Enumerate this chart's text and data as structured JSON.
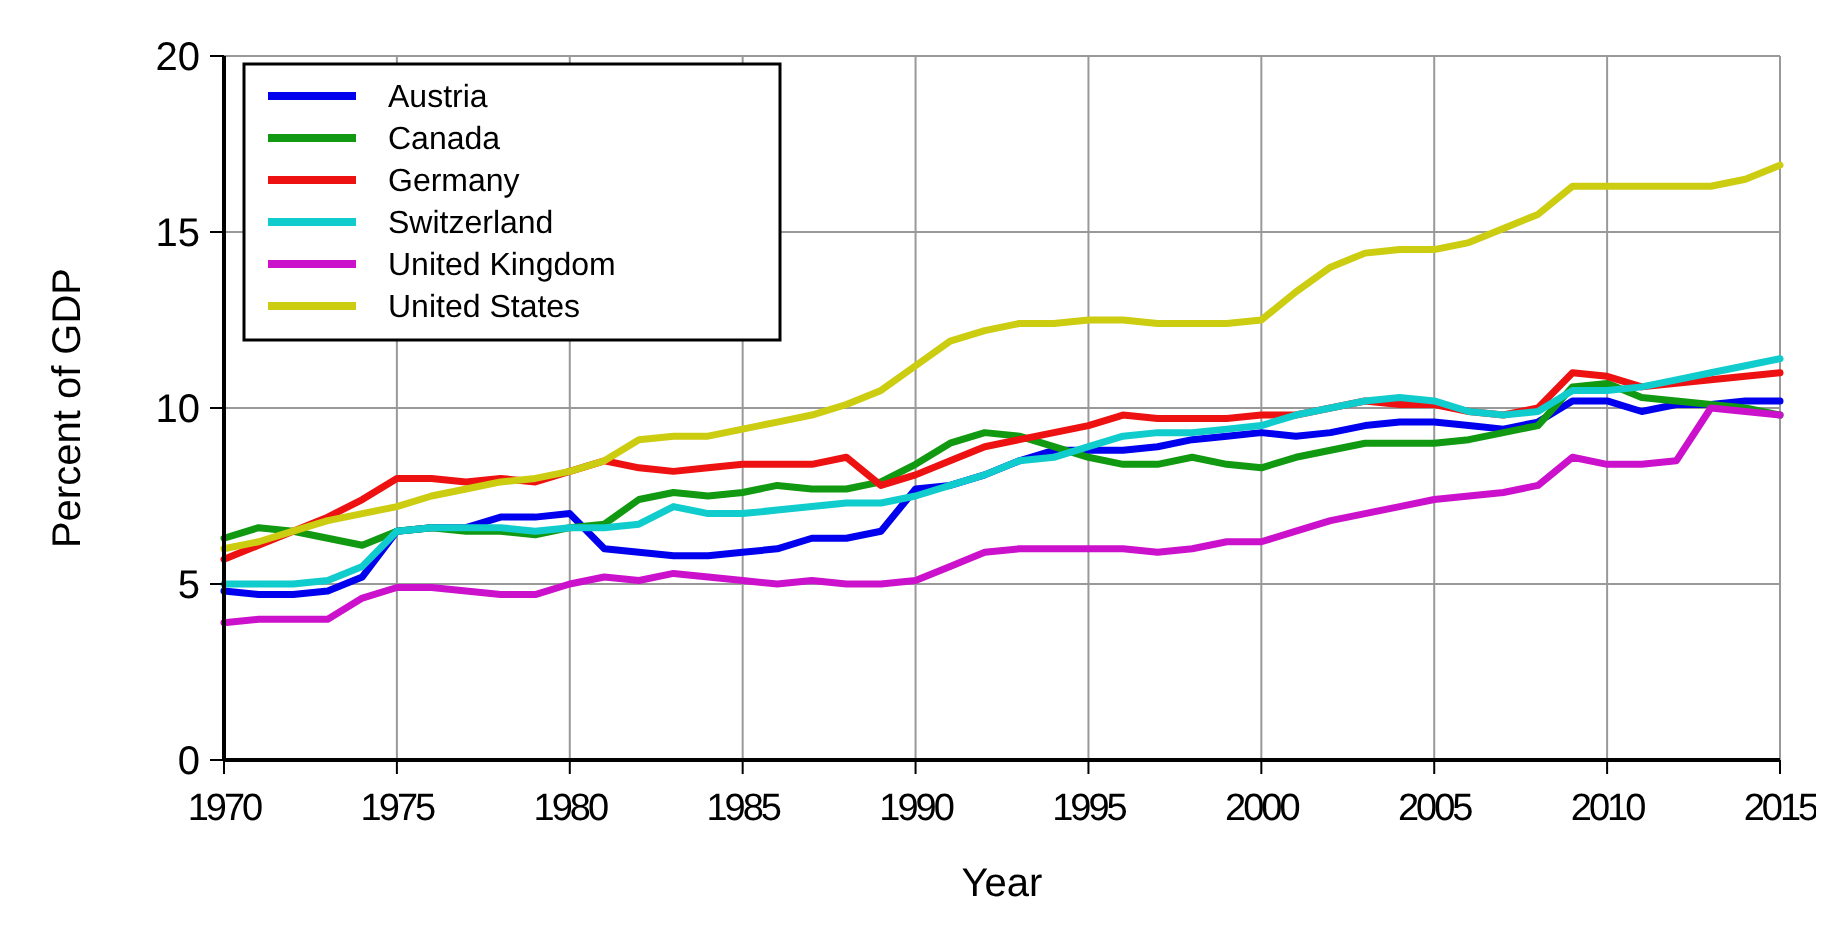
{
  "chart_data": {
    "type": "line",
    "xlabel": "Year",
    "ylabel": "Percent of GDP",
    "x": [
      1970,
      1971,
      1972,
      1973,
      1974,
      1975,
      1976,
      1977,
      1978,
      1979,
      1980,
      1981,
      1982,
      1983,
      1984,
      1985,
      1986,
      1987,
      1988,
      1989,
      1990,
      1991,
      1992,
      1993,
      1994,
      1995,
      1996,
      1997,
      1998,
      1999,
      2000,
      2001,
      2002,
      2003,
      2004,
      2005,
      2006,
      2007,
      2008,
      2009,
      2010,
      2011,
      2012,
      2013,
      2014,
      2015
    ],
    "xlim": [
      1970,
      2015
    ],
    "xticks": [
      1970,
      1975,
      1980,
      1985,
      1990,
      1995,
      2000,
      2005,
      2010,
      2015
    ],
    "ylim": [
      0,
      20
    ],
    "yticks": [
      0,
      5,
      10,
      15,
      20
    ],
    "grid": true,
    "legend": "top left",
    "line_style": "solid",
    "marker": "none",
    "series": [
      {
        "name": "Austria",
        "color": "#0000ee",
        "values": [
          4.8,
          4.7,
          4.7,
          4.8,
          5.2,
          6.5,
          6.6,
          6.6,
          6.9,
          6.9,
          7.0,
          6.0,
          5.9,
          5.8,
          5.8,
          5.9,
          6.0,
          6.3,
          6.3,
          6.5,
          7.7,
          7.8,
          8.1,
          8.5,
          8.8,
          8.8,
          8.8,
          8.9,
          9.1,
          9.2,
          9.3,
          9.2,
          9.3,
          9.5,
          9.6,
          9.6,
          9.5,
          9.4,
          9.6,
          10.2,
          10.2,
          9.9,
          10.1,
          10.1,
          10.2,
          10.2
        ]
      },
      {
        "name": "Canada",
        "color": "#119911",
        "values": [
          6.3,
          6.6,
          6.5,
          6.3,
          6.1,
          6.5,
          6.6,
          6.5,
          6.5,
          6.4,
          6.6,
          6.7,
          7.4,
          7.6,
          7.5,
          7.6,
          7.8,
          7.7,
          7.7,
          7.9,
          8.4,
          9.0,
          9.3,
          9.2,
          8.9,
          8.6,
          8.4,
          8.4,
          8.6,
          8.4,
          8.3,
          8.6,
          8.8,
          9.0,
          9.0,
          9.0,
          9.1,
          9.3,
          9.5,
          10.6,
          10.7,
          10.3,
          10.2,
          10.1,
          10.0,
          9.8
        ]
      },
      {
        "name": "Germany",
        "color": "#ee1111",
        "values": [
          5.7,
          6.1,
          6.5,
          6.9,
          7.4,
          8.0,
          8.0,
          7.9,
          8.0,
          7.9,
          8.2,
          8.5,
          8.3,
          8.2,
          8.3,
          8.4,
          8.4,
          8.4,
          8.6,
          7.8,
          8.1,
          8.5,
          8.9,
          9.1,
          9.3,
          9.5,
          9.8,
          9.7,
          9.7,
          9.7,
          9.8,
          9.8,
          10.0,
          10.2,
          10.1,
          10.1,
          9.9,
          9.8,
          10.0,
          11.0,
          10.9,
          10.6,
          10.7,
          10.8,
          10.9,
          11.0
        ]
      },
      {
        "name": "Switzerland",
        "color": "#11cccc",
        "values": [
          5.0,
          5.0,
          5.0,
          5.1,
          5.5,
          6.5,
          6.6,
          6.6,
          6.6,
          6.5,
          6.6,
          6.6,
          6.7,
          7.2,
          7.0,
          7.0,
          7.1,
          7.2,
          7.3,
          7.3,
          7.5,
          7.8,
          8.1,
          8.5,
          8.6,
          8.9,
          9.2,
          9.3,
          9.3,
          9.4,
          9.5,
          9.8,
          10.0,
          10.2,
          10.3,
          10.2,
          9.9,
          9.8,
          9.9,
          10.5,
          10.5,
          10.6,
          10.8,
          11.0,
          11.2,
          11.4
        ]
      },
      {
        "name": "United Kingdom",
        "color": "#cc11cc",
        "values": [
          3.9,
          4.0,
          4.0,
          4.0,
          4.6,
          4.9,
          4.9,
          4.8,
          4.7,
          4.7,
          5.0,
          5.2,
          5.1,
          5.3,
          5.2,
          5.1,
          5.0,
          5.1,
          5.0,
          5.0,
          5.1,
          5.5,
          5.9,
          6.0,
          6.0,
          6.0,
          6.0,
          5.9,
          6.0,
          6.2,
          6.2,
          6.5,
          6.8,
          7.0,
          7.2,
          7.4,
          7.5,
          7.6,
          7.8,
          8.6,
          8.4,
          8.4,
          8.5,
          10.0,
          9.9,
          9.8
        ]
      },
      {
        "name": "United States",
        "color": "#cccc11",
        "values": [
          6.0,
          6.2,
          6.5,
          6.8,
          7.0,
          7.2,
          7.5,
          7.7,
          7.9,
          8.0,
          8.2,
          8.5,
          9.1,
          9.2,
          9.2,
          9.4,
          9.6,
          9.8,
          10.1,
          10.5,
          11.2,
          11.9,
          12.2,
          12.4,
          12.4,
          12.5,
          12.5,
          12.4,
          12.4,
          12.4,
          12.5,
          13.3,
          14.0,
          14.4,
          14.5,
          14.5,
          14.7,
          15.1,
          15.5,
          16.3,
          16.3,
          16.3,
          16.3,
          16.3,
          16.5,
          16.9
        ]
      }
    ]
  }
}
